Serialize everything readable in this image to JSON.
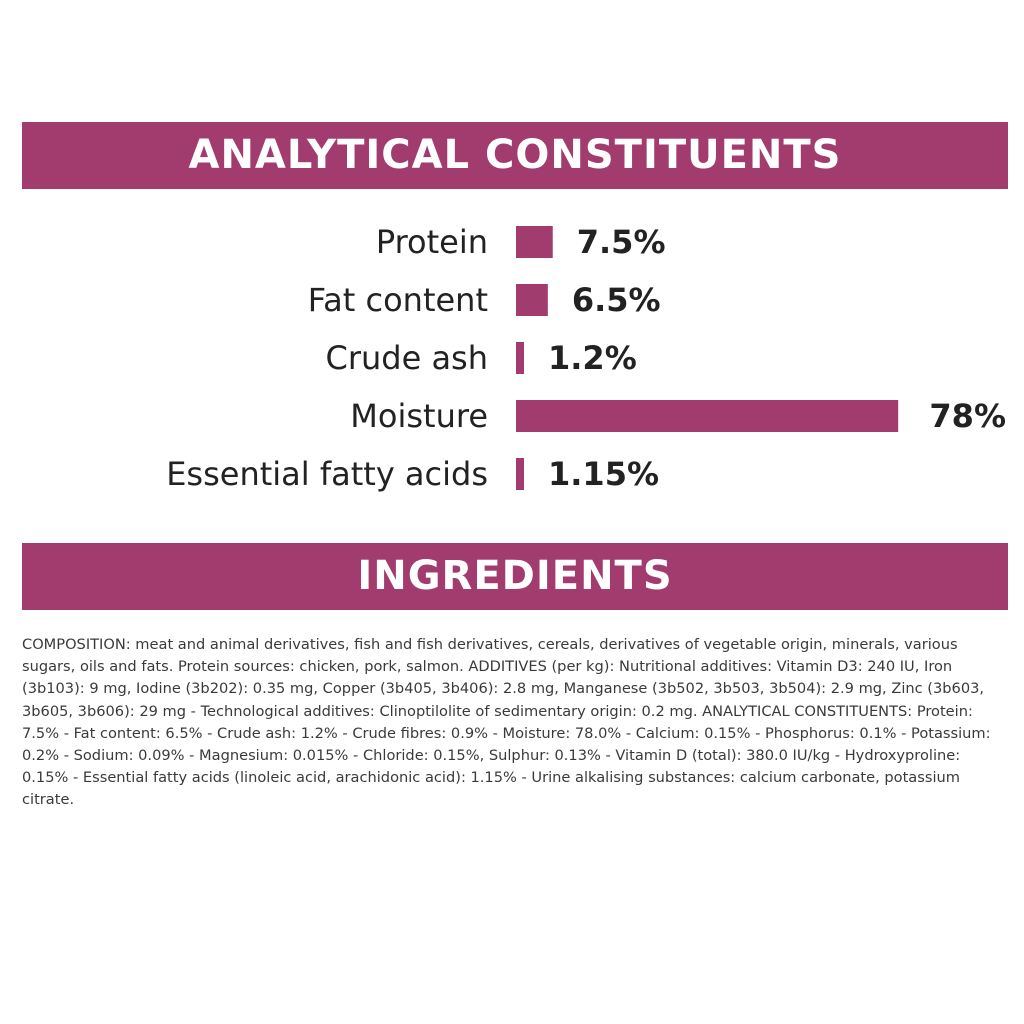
{
  "sections": {
    "analytical_title": "ANALYTICAL CONSTITUENTS",
    "ingredients_title": "INGREDIENTS"
  },
  "colors": {
    "accent": "#a23c6e",
    "text": "#222222"
  },
  "chart_data": {
    "type": "bar",
    "orientation": "horizontal",
    "title": "ANALYTICAL CONSTITUENTS",
    "categories": [
      "Protein",
      "Fat content",
      "Crude ash",
      "Moisture",
      "Essential fatty acids"
    ],
    "values": [
      7.5,
      6.5,
      1.2,
      78,
      1.15
    ],
    "value_labels": [
      "7.5%",
      "6.5%",
      "1.2%",
      "78%",
      "1.15%"
    ],
    "unit": "%",
    "grid": false,
    "legend": "none"
  },
  "ingredients": {
    "composition_text": "COMPOSITION: meat and animal derivatives, fish and fish derivatives, cereals, derivatives of vegetable origin, minerals, various sugars, oils and fats. Protein sources: chicken, pork, salmon. ADDITIVES (per kg): Nutritional additives: Vitamin D3: 240 IU, Iron (3b103): 9 mg, Iodine (3b202): 0.35 mg, Copper (3b405, 3b406): 2.8 mg, Manganese (3b502, 3b503, 3b504): 2.9 mg, Zinc (3b603, 3b605, 3b606): 29 mg - Technological additives: Clinoptilolite of sedimentary origin: 0.2 mg. ANALYTICAL CONSTITUENTS: Protein: 7.5% - Fat content: 6.5% - Crude ash: 1.2% - Crude fibres: 0.9% - Moisture: 78.0% - Calcium: 0.15% - Phosphorus: 0.1% - Potassium: 0.2% - Sodium: 0.09% - Magnesium: 0.015% - Chloride: 0.15%, Sulphur: 0.13% - Vitamin D (total): 380.0 IU/kg - Hydroxyproline: 0.15% - Essential fatty acids (linoleic acid, arachidonic acid): 1.15% - Urine alkalising substances: calcium carbonate, potassium citrate."
  }
}
